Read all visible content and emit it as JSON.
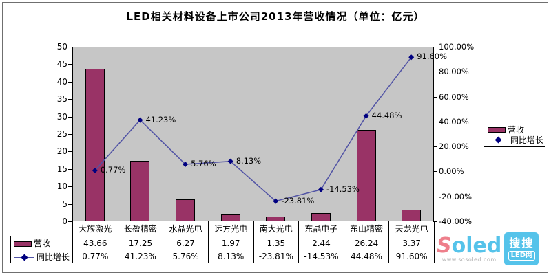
{
  "chart_data": {
    "type": "bar",
    "subtype": "combo-bar-line",
    "title": "LED相关材料设备上市公司2013年营收情况（单位：亿元）",
    "categories": [
      "大族激光",
      "长盈精密",
      "水晶光电",
      "远方光电",
      "南大光电",
      "东晶电子",
      "东山精密",
      "天龙光电"
    ],
    "series": [
      {
        "name": "营收",
        "type": "bar",
        "axis": "left",
        "values": [
          43.66,
          17.25,
          6.27,
          1.97,
          1.35,
          2.44,
          26.24,
          3.37
        ],
        "labels": [
          "43.66",
          "17.25",
          "6.27",
          "1.97",
          "1.35",
          "2.44",
          "26.24",
          "3.37"
        ],
        "color": "#993366"
      },
      {
        "name": "同比增长",
        "type": "line",
        "axis": "right",
        "values": [
          0.77,
          41.23,
          5.76,
          8.13,
          -23.81,
          -14.53,
          44.48,
          91.6
        ],
        "labels": [
          "0.77%",
          "41.23%",
          "5.76%",
          "8.13%",
          "-23.81%",
          "-14.53%",
          "44.48%",
          "91.60%"
        ],
        "color": "#5153a5",
        "marker_color": "#000080"
      }
    ],
    "left_axis": {
      "min": 0,
      "max": 50,
      "step": 5,
      "ticks": [
        "50",
        "45",
        "40",
        "35",
        "30",
        "25",
        "20",
        "15",
        "10",
        "5",
        "0"
      ]
    },
    "right_axis": {
      "min": -40,
      "max": 100,
      "step": 20,
      "ticks": [
        "100.00%",
        "80.00%",
        "60.00%",
        "40.00%",
        "20.00%",
        "0.00%",
        "-20.00%",
        "-40.00%"
      ]
    },
    "plot_background": "#c6c6c6",
    "grid": "off",
    "legend_position": "right"
  },
  "watermark": {
    "brand_s": "S",
    "brand_rest": "oled",
    "url": "www.sosoled.com",
    "badge_top": "搜搜",
    "badge_bottom": "LED网",
    "color_pink": "#ee7f8b",
    "color_blue": "#55c3ea",
    "color_gray": "#b0b0b0"
  }
}
